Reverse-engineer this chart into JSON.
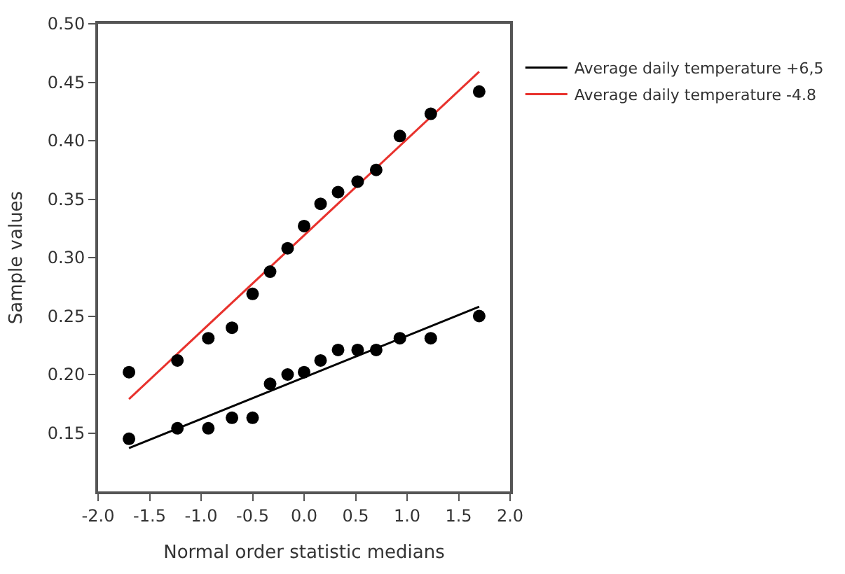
{
  "chart_data": {
    "type": "scatter",
    "xlabel": "Normal order statistic medians",
    "ylabel": "Sample values",
    "xlim": [
      -2.0,
      2.0
    ],
    "xticks": [
      {
        "value": -2.0,
        "label": "-2.0"
      },
      {
        "value": -1.5,
        "label": "-1.5"
      },
      {
        "value": -1.0,
        "label": "-1.0"
      },
      {
        "value": -0.5,
        "label": "-0.5"
      },
      {
        "value": 0,
        "label": "0.0"
      },
      {
        "value": 0.5,
        "label": "0.5"
      },
      {
        "value": 1.0,
        "label": "1.0"
      },
      {
        "value": 1.5,
        "label": "1.5"
      },
      {
        "value": 2.0,
        "label": "2.0"
      }
    ],
    "ylim": [
      0.1,
      0.5
    ],
    "yticks": [
      {
        "value": 0.15,
        "label": "0.15"
      },
      {
        "value": 0.2,
        "label": "0.20"
      },
      {
        "value": 0.25,
        "label": "0.25"
      },
      {
        "value": 0.3,
        "label": "0.30"
      },
      {
        "value": 0.35,
        "label": "0.35"
      },
      {
        "value": 0.4,
        "label": "0.40"
      },
      {
        "value": 0.45,
        "label": "0.45"
      },
      {
        "value": 0.5,
        "label": "0.50"
      }
    ],
    "legend": "right",
    "marker": "circle",
    "series": [
      {
        "type": "line",
        "marker": "none",
        "name": "Average daily temperature +6,5",
        "color": "#000000",
        "x": [
          -1.7,
          1.7
        ],
        "values": [
          0.137,
          0.258
        ]
      },
      {
        "type": "line",
        "marker": "none",
        "name": "Average daily temperature -4.8",
        "color": "#e8322d",
        "x": [
          -1.7,
          1.7
        ],
        "values": [
          0.179,
          0.459
        ]
      },
      {
        "color": "#000000",
        "x": [
          -1.7,
          -1.23,
          -0.93,
          -0.7,
          -0.5,
          -0.33,
          -0.16,
          0,
          0.16,
          0.33,
          0.52,
          0.7,
          0.93,
          1.23,
          1.7
        ],
        "values": [
          0.145,
          0.154,
          0.154,
          0.163,
          0.163,
          0.192,
          0.2,
          0.202,
          0.212,
          0.221,
          0.221,
          0.221,
          0.231,
          0.231,
          0.25
        ]
      },
      {
        "color": "#000000",
        "x": [
          -1.7,
          -1.23,
          -0.93,
          -0.7,
          -0.5,
          -0.33,
          -0.16,
          0,
          0.16,
          0.33,
          0.52,
          0.7,
          0.93,
          1.23,
          1.7
        ],
        "values": [
          0.202,
          0.212,
          0.231,
          0.24,
          0.269,
          0.288,
          0.308,
          0.327,
          0.346,
          0.356,
          0.365,
          0.375,
          0.404,
          0.423,
          0.442
        ]
      }
    ]
  }
}
